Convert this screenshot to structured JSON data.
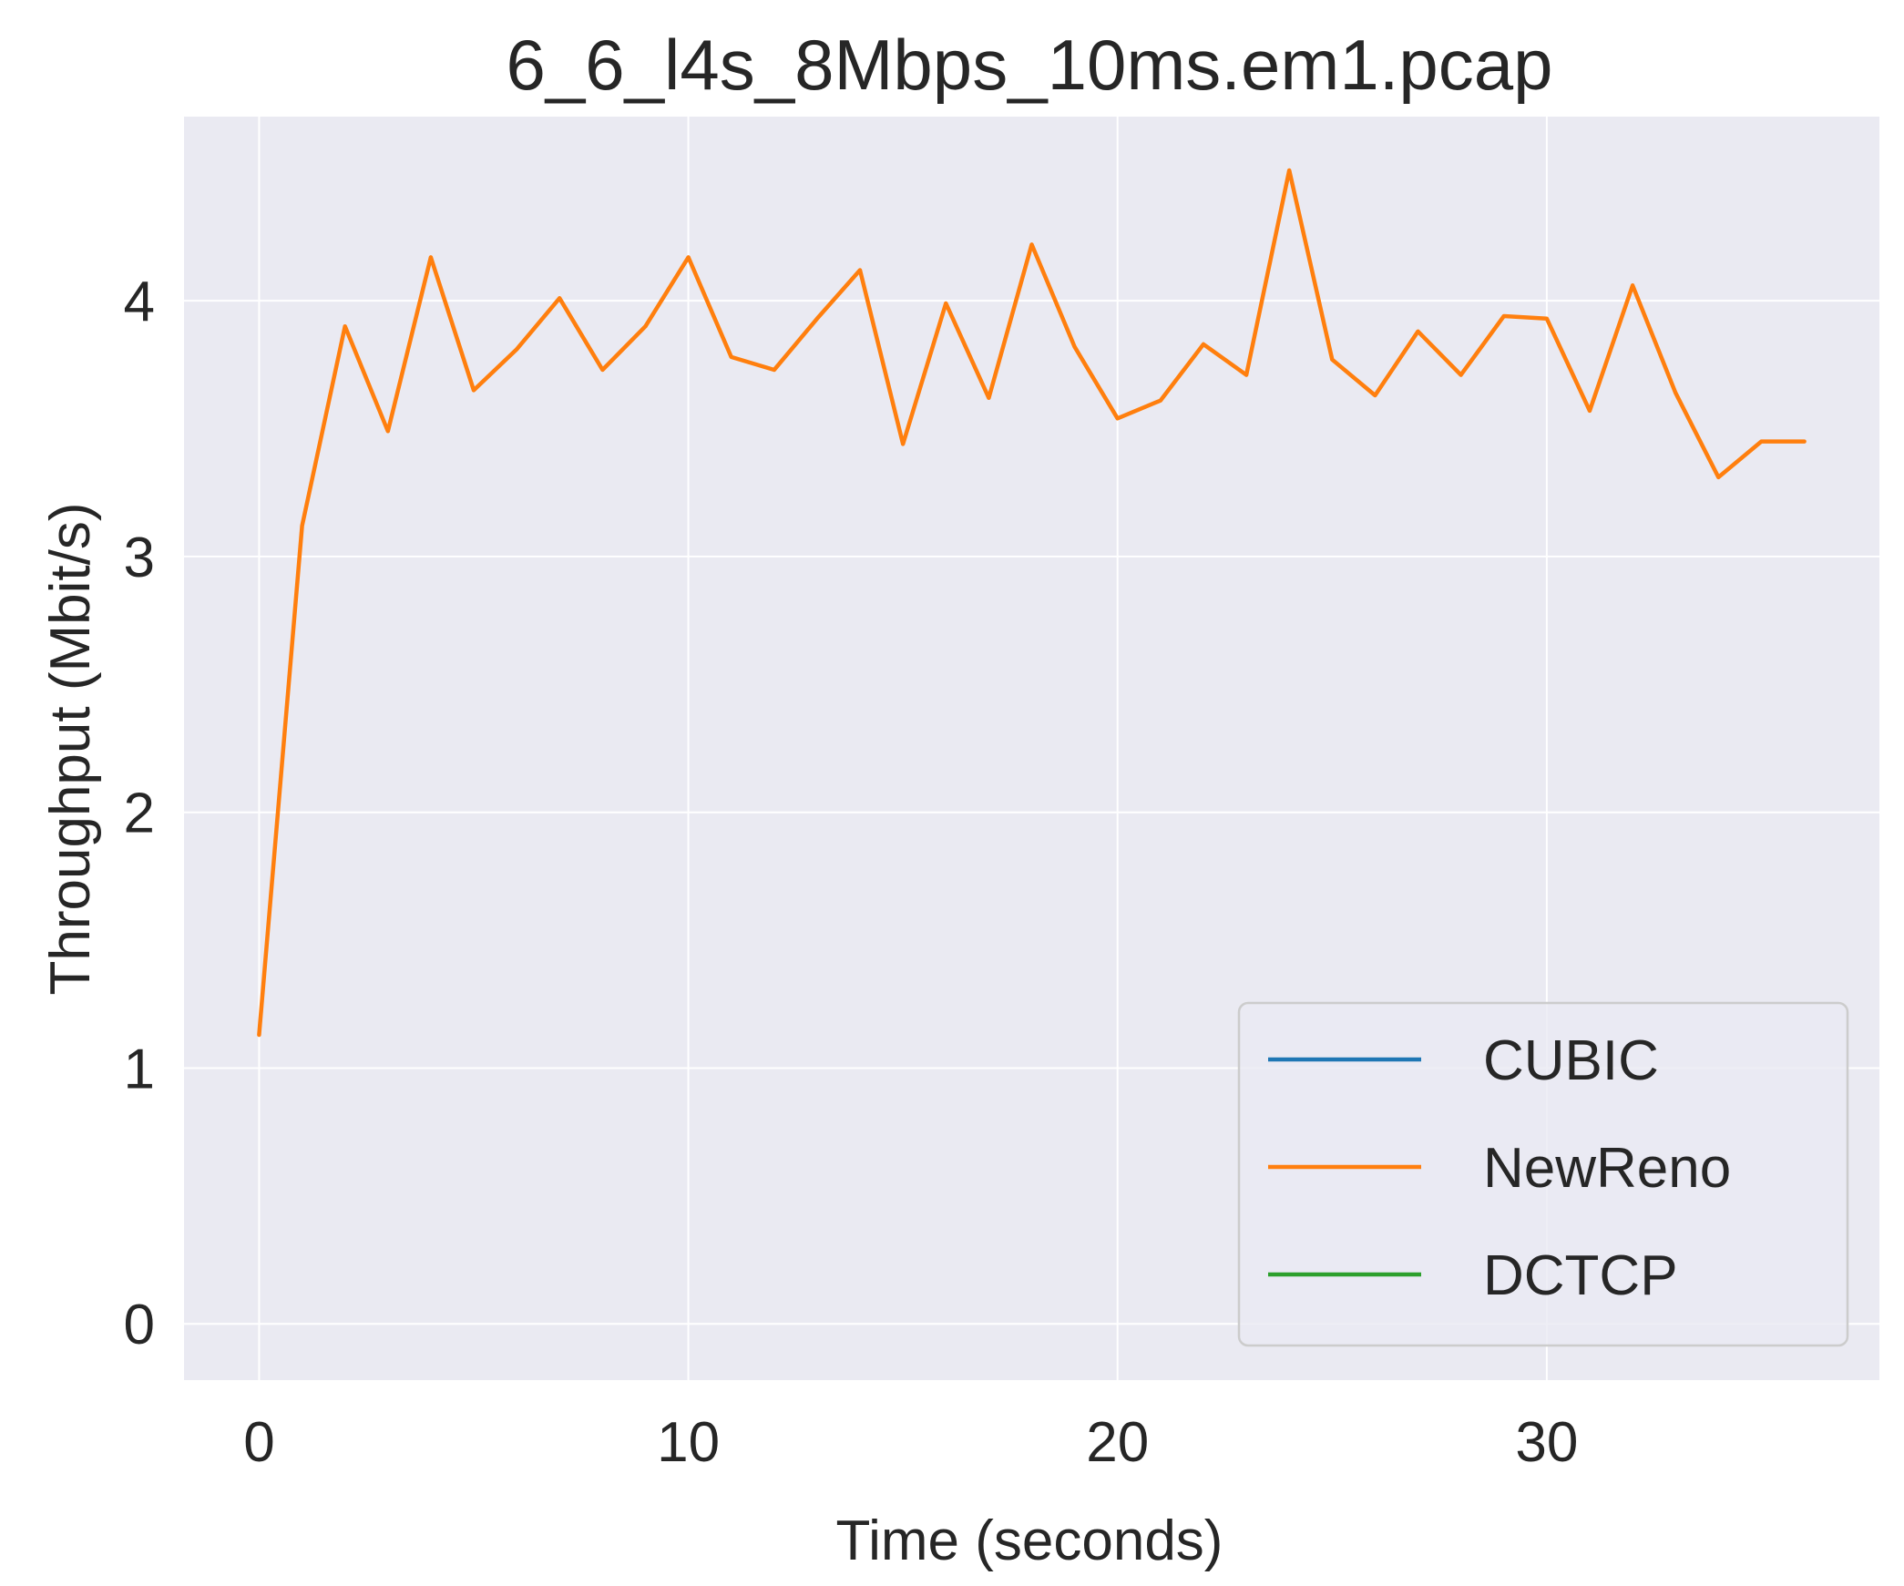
{
  "chart_data": {
    "type": "line",
    "title": "6_6_l4s_8Mbps_10ms.em1.pcap",
    "xlabel": "Time (seconds)",
    "ylabel": "Throughput (Mbit/s)",
    "xlim": [
      -1.75,
      37.75
    ],
    "ylim": [
      -0.22,
      4.72
    ],
    "xticks": [
      0,
      10,
      20,
      30
    ],
    "yticks": [
      0,
      1,
      2,
      3,
      4
    ],
    "grid": true,
    "legend_position": "lower right",
    "background": "#eaeaf2",
    "series": [
      {
        "name": "CUBIC",
        "color": "#1f77b4",
        "x": [],
        "y": []
      },
      {
        "name": "NewReno",
        "color": "#ff7f0e",
        "x": [
          0,
          1,
          2,
          3,
          4,
          5,
          6,
          7,
          8,
          9,
          10,
          11,
          12,
          13,
          14,
          15,
          16,
          17,
          18,
          19,
          20,
          21,
          22,
          23,
          24,
          25,
          26,
          27,
          28,
          29,
          30,
          31,
          32,
          33,
          34,
          35,
          36
        ],
        "y": [
          1.13,
          3.12,
          3.9,
          3.49,
          4.17,
          3.65,
          3.81,
          4.01,
          3.73,
          3.9,
          4.17,
          3.78,
          3.73,
          3.93,
          4.12,
          3.44,
          3.99,
          3.62,
          4.22,
          3.82,
          3.54,
          3.61,
          3.83,
          3.71,
          4.51,
          3.77,
          3.63,
          3.88,
          3.71,
          3.94,
          3.93,
          3.57,
          4.06,
          3.64,
          3.31,
          3.45,
          3.45
        ]
      },
      {
        "name": "DCTCP",
        "color": "#2ca02c",
        "x": [],
        "y": []
      }
    ]
  }
}
